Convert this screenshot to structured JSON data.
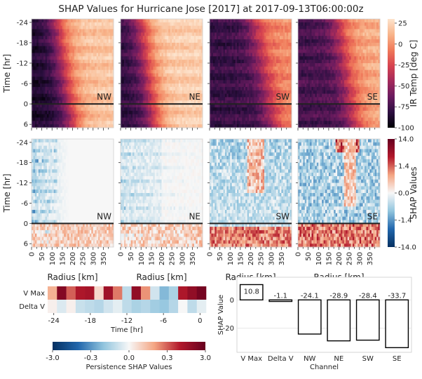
{
  "title": "SHAP Values for Hurricane Jose [2017] at 2017-09-13T06:00:00z",
  "colors": {
    "ir_scale": [
      "#000004",
      "#2d0f41",
      "#6a1b5f",
      "#a32a5b",
      "#d7434f",
      "#f07a5a",
      "#f8b48a",
      "#fde3cc"
    ],
    "shap_scale": [
      "#053061",
      "#2166ac",
      "#92c5de",
      "#f7f7f7",
      "#f4a582",
      "#b2182b",
      "#67001f"
    ],
    "frame": "#222222"
  },
  "chart_data": [
    {
      "id": "ir_temp_panels",
      "type": "heatmap",
      "quadrants": [
        "NW",
        "NE",
        "SW",
        "SE"
      ],
      "ylabel": "Time [hr]",
      "y_ticks": [
        "-24",
        "-18",
        "-12",
        "-6",
        "0",
        "6"
      ],
      "y_range": [
        -25,
        7
      ],
      "x_range": [
        0,
        400
      ],
      "highlight_time": 0,
      "colorbar": {
        "label": "IR Temp [deg C]",
        "ticks": [
          "25",
          "0",
          "-25",
          "-50",
          "-75",
          "-100"
        ],
        "range": [
          -100,
          30
        ]
      }
    },
    {
      "id": "shap_panels",
      "type": "heatmap",
      "quadrants": [
        "NW",
        "NE",
        "SW",
        "SE"
      ],
      "xlabel": "Radius [km]",
      "ylabel": "Time [hr]",
      "x_ticks": [
        "0",
        "50",
        "100",
        "150",
        "200",
        "250",
        "300",
        "350"
      ],
      "y_ticks": [
        "-24",
        "-18",
        "-12",
        "-6",
        "0",
        "6"
      ],
      "x_range": [
        0,
        400
      ],
      "y_range": [
        -25,
        7
      ],
      "highlight_time": 0,
      "colorbar": {
        "label": "SHAP Values",
        "ticks": [
          "14.0",
          "1.4",
          "0.0",
          "-1.4",
          "-14.0"
        ],
        "scale": "symlog"
      }
    },
    {
      "id": "persistence_heatmap",
      "type": "heatmap",
      "rows": [
        "V Max",
        "Delta V"
      ],
      "xlabel": "Time [hr]",
      "x_ticks": [
        "-24",
        "-18",
        "-12",
        "-6",
        "0"
      ],
      "x_range": [
        -25,
        1
      ],
      "values": [
        [
          0.9,
          2.8,
          1.6,
          2.2,
          2.3,
          0.4,
          2.4,
          1.4,
          -0.6,
          2.6,
          1.2,
          -0.4,
          -1.2,
          -0.8,
          2.2,
          2.6,
          3.0
        ],
        [
          0.1,
          -0.3,
          0.1,
          -0.5,
          -0.6,
          -0.7,
          -0.4,
          -0.2,
          -0.6,
          -0.8,
          -0.7,
          -0.9,
          -1.0,
          -0.7,
          0.0,
          -0.6,
          -0.2
        ]
      ],
      "colorbar": {
        "label": "Persistence SHAP Values",
        "ticks": [
          "-3.0",
          "-0.3",
          "0.0",
          "0.3",
          "3.0"
        ],
        "range": [
          -3,
          3
        ],
        "scale": "symlog"
      }
    },
    {
      "id": "channel_totals",
      "type": "bar",
      "categories": [
        "V Max",
        "Delta V",
        "NW",
        "NE",
        "SW",
        "SE"
      ],
      "values": [
        10.8,
        -1.1,
        -24.1,
        -28.9,
        -28.4,
        -33.7
      ],
      "value_labels": [
        "10.8",
        "-1.1",
        "-24.1",
        "-28.9",
        "-28.4",
        "-33.7"
      ],
      "xlabel": "Channel",
      "ylabel": "SHAP Value",
      "y_ticks": [
        "0",
        "-20"
      ],
      "ylim": [
        -37,
        16
      ]
    }
  ]
}
